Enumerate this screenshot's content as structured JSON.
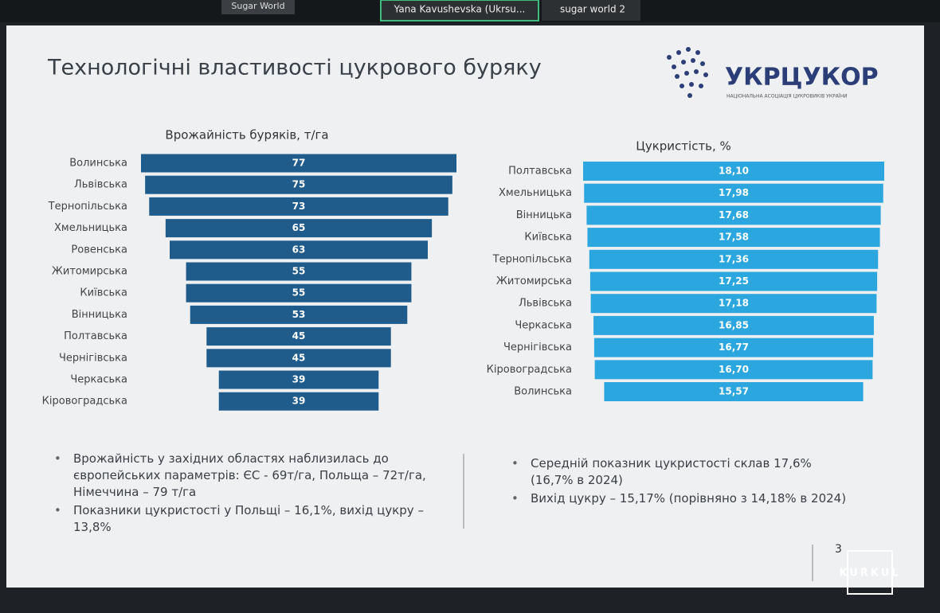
{
  "call_bar": {
    "tiles": [
      "Sugar World",
      "Yana Kavushevska (Ukrsu...",
      "sugar world 2"
    ]
  },
  "slide": {
    "title": "Технологічні властивості цукрового буряку",
    "logo": {
      "name": "УКРЦУКОР",
      "tagline": "НАЦІОНАЛЬНА АСОЦІАЦІЯ ЦУКРОВИКІВ УКРАЇНИ"
    },
    "left_bullets": [
      "Врожайність у західних областях наблизилась до європейських параметрів: ЄС - 69т/га, Польща – 72т/га, Німеччина – 79 т/га",
      "Показники цукристості у Польщі – 16,1%, вихід цукру – 13,8%"
    ],
    "right_bullets": [
      "Середній показник цукристості склав 17,6% (16,7% в 2024)",
      "Вихід цукру – 15,17% (порівняно з 14,18% в 2024)"
    ],
    "page_number": "3"
  },
  "watermark": "KURKUL",
  "chart_data": [
    {
      "type": "funnel",
      "title": "Врожайність буряків, т/га",
      "color": "#1f5c8c",
      "categories": [
        "Волинська",
        "Львівська",
        "Тернопільська",
        "Хмельницька",
        "Ровенська",
        "Житомирська",
        "Київська",
        "Вінницька",
        "Полтавська",
        "Чернігівська",
        "Черкаська",
        "Кіровоградська"
      ],
      "values": [
        77,
        75,
        73,
        65,
        63,
        55,
        55,
        53,
        45,
        45,
        39,
        39
      ]
    },
    {
      "type": "funnel",
      "title": "Цукристість, %",
      "color": "#2ba6df",
      "categories": [
        "Полтавська",
        "Хмельницька",
        "Вінницька",
        "Київська",
        "Тернопільська",
        "Житомирська",
        "Львівська",
        "Черкаська",
        "Чернігівська",
        "Кіровоградська",
        "Волинська"
      ],
      "values": [
        18.1,
        17.98,
        17.68,
        17.58,
        17.36,
        17.25,
        17.18,
        16.85,
        16.77,
        16.7,
        15.57
      ],
      "value_labels": [
        "18,10",
        "17,98",
        "17,68",
        "17,58",
        "17,36",
        "17,25",
        "17,18",
        "16,85",
        "16,77",
        "16,70",
        "15,57"
      ]
    }
  ]
}
